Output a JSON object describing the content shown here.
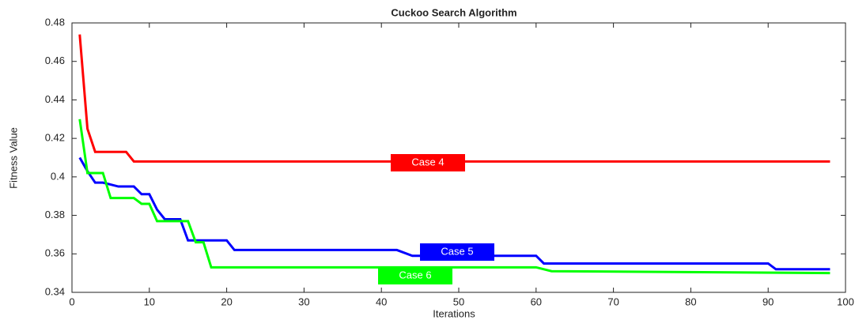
{
  "chart_data": {
    "type": "line",
    "title": "Cuckoo Search Algorithm",
    "x_label": "Iterations",
    "y_label": "Fitness Value",
    "xlim": [
      0,
      100
    ],
    "xticks": [
      0,
      10,
      20,
      30,
      40,
      50,
      60,
      70,
      80,
      90,
      100
    ],
    "ylim": [
      0.34,
      0.48
    ],
    "yticks": [
      0.34,
      0.36,
      0.38,
      0.4,
      0.42,
      0.44,
      0.46,
      0.48
    ],
    "series": [
      {
        "name": "Case 4",
        "color": "#ff0000",
        "x": [
          1,
          2,
          3,
          7,
          8,
          98
        ],
        "values": [
          0.474,
          0.425,
          0.413,
          0.413,
          0.408,
          0.408
        ]
      },
      {
        "name": "Case 5",
        "color": "#0000ff",
        "x": [
          1,
          2,
          3,
          4,
          5,
          6,
          8,
          9,
          10,
          11,
          12,
          14,
          15,
          20,
          21,
          42,
          44,
          60,
          61,
          90,
          91,
          98
        ],
        "values": [
          0.41,
          0.403,
          0.397,
          0.397,
          0.396,
          0.395,
          0.395,
          0.391,
          0.391,
          0.383,
          0.378,
          0.378,
          0.367,
          0.367,
          0.362,
          0.362,
          0.359,
          0.359,
          0.355,
          0.355,
          0.352,
          0.352
        ]
      },
      {
        "name": "Case 6",
        "color": "#00ff00",
        "x": [
          1,
          2,
          4,
          5,
          8,
          9,
          10,
          11,
          15,
          16,
          17,
          18,
          60,
          62,
          98
        ],
        "values": [
          0.43,
          0.402,
          0.402,
          0.389,
          0.389,
          0.386,
          0.386,
          0.377,
          0.377,
          0.366,
          0.366,
          0.353,
          0.353,
          0.351,
          0.35
        ]
      }
    ]
  }
}
